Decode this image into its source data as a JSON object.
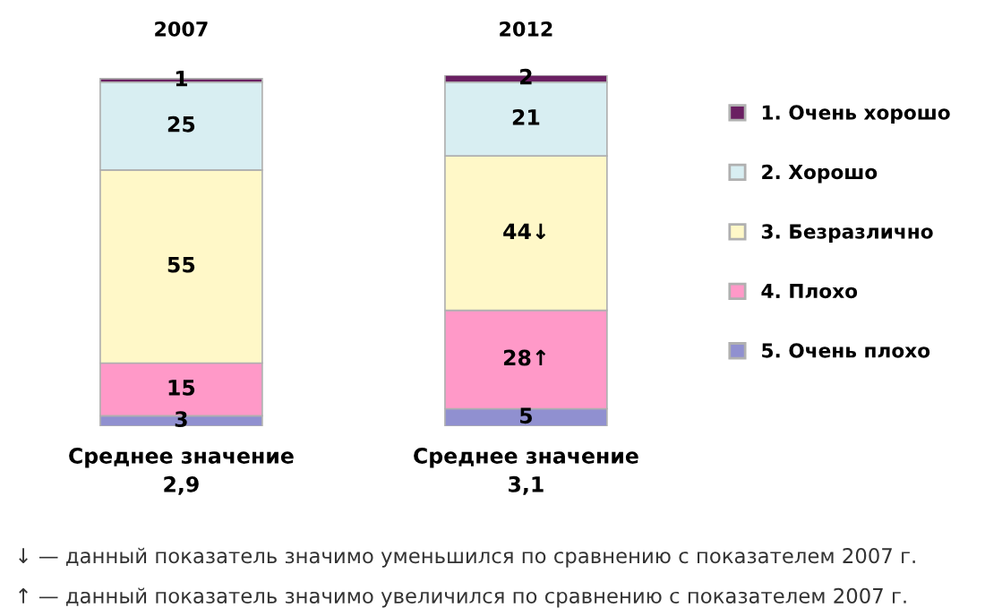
{
  "chart_data": {
    "type": "bar",
    "stacked": true,
    "categories": [
      "2007",
      "2012"
    ],
    "series": [
      {
        "name": "5. Очень плохо",
        "color": "#9090d0",
        "values": [
          3,
          5
        ],
        "value_labels": [
          "3",
          "5"
        ]
      },
      {
        "name": "4. Плохо",
        "color": "#ff99c8",
        "values": [
          15,
          28
        ],
        "value_labels": [
          "15",
          "28↑"
        ]
      },
      {
        "name": "3. Безразлично",
        "color": "#fff8c8",
        "values": [
          55,
          44
        ],
        "value_labels": [
          "55",
          "44↓"
        ]
      },
      {
        "name": "2. Хорошо",
        "color": "#d8eef2",
        "values": [
          25,
          21
        ],
        "value_labels": [
          "25",
          "21"
        ]
      },
      {
        "name": "1. Очень хорошо",
        "color": "#6a1f62",
        "values": [
          1,
          2
        ],
        "value_labels": [
          "1",
          "2"
        ]
      }
    ],
    "legend": "right",
    "annotations": [
      "Среднее значение\n2,9",
      "Среднее значение\n3,1",
      "↓ — данный показатель значимо уменьшился по сравнению с показателем 2007 г.",
      "↑ — данный показатель значимо увеличился по сравнению с показателем 2007 г."
    ]
  }
}
